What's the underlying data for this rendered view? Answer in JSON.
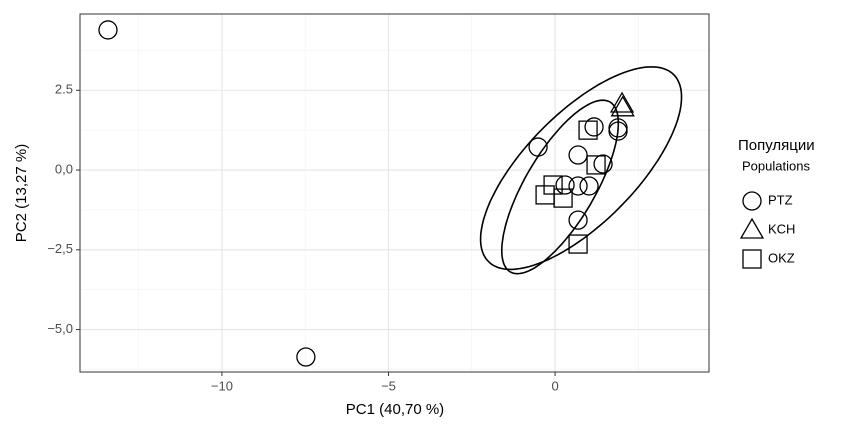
{
  "chart_data": {
    "type": "scatter",
    "xlabel": "PC1 (40,70 %)",
    "ylabel": "PC2 (13,27 %)",
    "xlim": [
      -14.26,
      4.62
    ],
    "ylim": [
      -6.33,
      4.89
    ],
    "xticks": [
      {
        "value": -10,
        "label": "−10"
      },
      {
        "value": -5,
        "label": "−5"
      },
      0
    ],
    "yticks": [
      {
        "value": -5,
        "label": "−5,0"
      },
      {
        "value": -2.5,
        "label": "−2,5"
      },
      {
        "value": 0,
        "label": "0,0"
      },
      {
        "value": 2.5,
        "label": "2.5"
      }
    ],
    "x_minor_ticks": [
      -12.5,
      -7.5,
      -2.5,
      2.5
    ],
    "y_minor_ticks": [
      -6.25,
      -3.75,
      -1.25,
      1.25,
      3.75
    ],
    "grid": true,
    "legend_title": "Популяции",
    "legend_subtitle": "Populations",
    "legend_position": "right",
    "series": [
      {
        "name": "PTZ",
        "shape": "circle",
        "color": "#000000",
        "x": [
          -13.42,
          -7.48,
          -0.51,
          0.69,
          1.17,
          1.89,
          1.89,
          1.44,
          0.3,
          0.69,
          1.02,
          0.69
        ],
        "values": [
          4.39,
          -5.86,
          0.72,
          0.47,
          1.35,
          1.32,
          1.22,
          0.19,
          -0.47,
          -0.5,
          -0.5,
          -1.57
        ]
      },
      {
        "name": "KCH",
        "shape": "triangle",
        "color": "#000000",
        "x": [
          2.01,
          2.03
        ],
        "values": [
          2.07,
          1.95
        ]
      },
      {
        "name": "OKZ",
        "shape": "square",
        "color": "#000000",
        "x": [
          0.99,
          1.23,
          -0.06,
          -0.3,
          0.24,
          0.69
        ],
        "values": [
          1.25,
          0.16,
          -0.47,
          -0.78,
          -0.88,
          -2.32
        ]
      }
    ],
    "ellipses": [
      {
        "center": [
          0.78,
          0.06
        ],
        "axis1": [
          2.78,
          2.93
        ],
        "axis2": [
          -1.17,
          1.22
        ]
      },
      {
        "center": [
          0.15,
          -0.53
        ],
        "axis1": [
          1.5,
          2.66
        ],
        "axis2": [
          -0.9,
          0.56
        ]
      }
    ]
  }
}
